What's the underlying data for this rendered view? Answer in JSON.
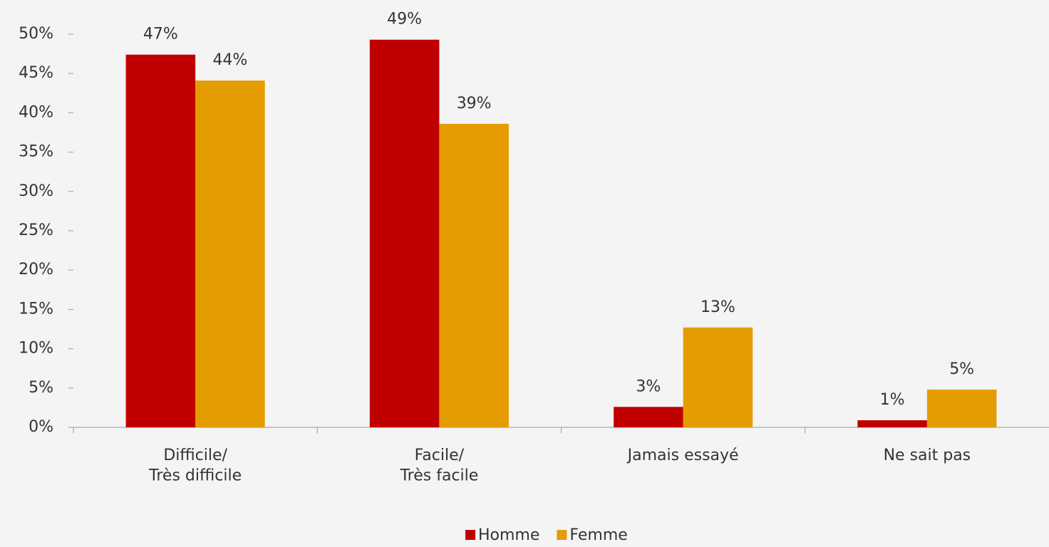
{
  "chart_data": {
    "type": "bar",
    "categories": [
      "Difficile/\nTrès difficile",
      "Facile/\nTrès facile",
      "Jamais essayé",
      "Ne sait pas"
    ],
    "series": [
      {
        "name": "Homme",
        "color": "#c00000",
        "values": [
          47.4,
          49.3,
          2.6,
          0.9
        ],
        "value_labels": [
          "47%",
          "49%",
          "3%",
          "1%"
        ]
      },
      {
        "name": "Femme",
        "color": "#e49c00",
        "values": [
          44.1,
          38.6,
          12.7,
          4.8
        ],
        "value_labels": [
          "44%",
          "39%",
          "13%",
          "5%"
        ]
      }
    ],
    "ylim": [
      0,
      50
    ],
    "yticks": [
      {
        "value": 0,
        "label": "0%"
      },
      {
        "value": 5,
        "label": "5%"
      },
      {
        "value": 10,
        "label": "10%"
      },
      {
        "value": 15,
        "label": "15%"
      },
      {
        "value": 20,
        "label": "20%"
      },
      {
        "value": 25,
        "label": "25%"
      },
      {
        "value": 30,
        "label": "30%"
      },
      {
        "value": 35,
        "label": "35%"
      },
      {
        "value": 40,
        "label": "40%"
      },
      {
        "value": 45,
        "label": "45%"
      },
      {
        "value": 50,
        "label": "50%"
      }
    ],
    "grid": false,
    "legend": "bottom"
  }
}
